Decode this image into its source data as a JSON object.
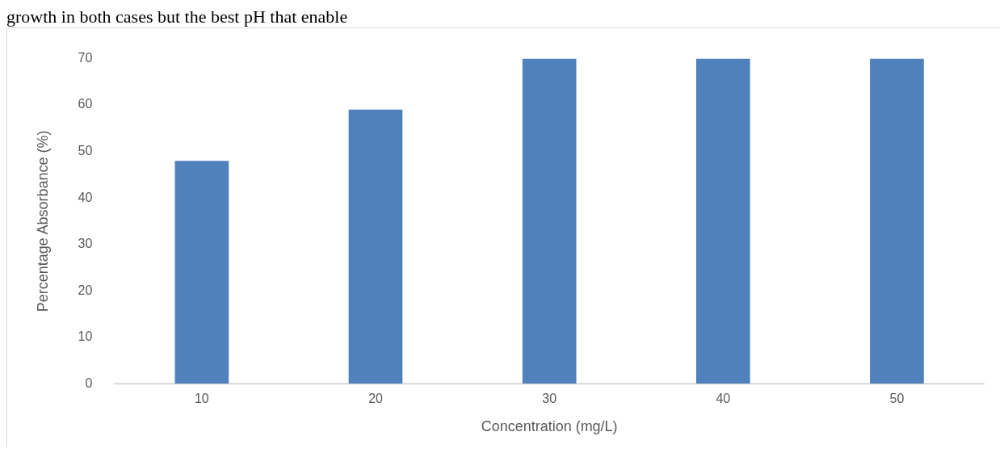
{
  "chart_data": {
    "type": "bar",
    "annotations": [
      "growth in both cases but the best pH that enable"
    ],
    "xlabel": "Concentration (mg/L)",
    "ylabel": "Percentage Absorbance (%)",
    "categories": [
      "10",
      "20",
      "30",
      "40",
      "50"
    ],
    "values": [
      48,
      59,
      70,
      70,
      70
    ],
    "color": "#4f81bd",
    "ylim": [
      0,
      70
    ],
    "yticks": [
      0,
      10,
      20,
      30,
      40,
      50,
      60,
      70
    ],
    "grid": false,
    "legend": false
  }
}
